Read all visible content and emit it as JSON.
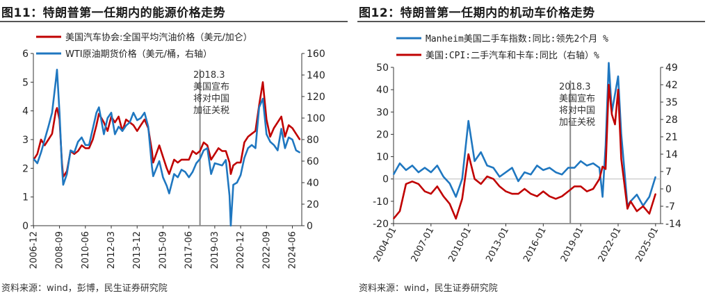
{
  "chart_data": [
    {
      "type": "line",
      "title": "图11：特朗普第一任期内的能源价格走势",
      "source": "资料来源：wind，彭博，民生证券研究院",
      "left_axis": {
        "ylim": [
          0,
          6
        ],
        "ticks": [
          "0",
          "1",
          "2",
          "3",
          "4",
          "5",
          "6"
        ]
      },
      "right_axis": {
        "ylim": [
          0,
          160
        ],
        "ticks": [
          "0",
          "20",
          "40",
          "60",
          "80",
          "100",
          "120",
          "140",
          "160"
        ]
      },
      "x_ticks": [
        "2006-12",
        "2008-09",
        "2010-06",
        "2012-03",
        "2013-12",
        "2015-09",
        "2017-06",
        "2019-03",
        "2020-12",
        "2022-09",
        "2024-06"
      ],
      "annotation": [
        "2018.3",
        "美国宣布",
        "将对中国",
        "加征关税"
      ],
      "event_line_x": "2018-03",
      "series": [
        {
          "name": "美国汽车协会:全国平均汽油价格（美元/加仑）",
          "axis": "left",
          "color": "#c00000",
          "x": [
            "2006-12",
            "2007-03",
            "2007-06",
            "2007-09",
            "2007-12",
            "2008-03",
            "2008-06",
            "2008-07",
            "2008-09",
            "2008-11",
            "2008-12",
            "2009-03",
            "2009-06",
            "2009-09",
            "2009-12",
            "2010-03",
            "2010-06",
            "2010-09",
            "2010-12",
            "2011-03",
            "2011-05",
            "2011-09",
            "2011-12",
            "2012-03",
            "2012-06",
            "2012-09",
            "2012-12",
            "2013-03",
            "2013-06",
            "2013-09",
            "2013-12",
            "2014-03",
            "2014-06",
            "2014-09",
            "2014-12",
            "2015-01",
            "2015-06",
            "2015-09",
            "2015-12",
            "2016-02",
            "2016-06",
            "2016-09",
            "2016-12",
            "2017-03",
            "2017-06",
            "2017-09",
            "2017-12",
            "2018-03",
            "2018-06",
            "2018-09",
            "2018-12",
            "2019-03",
            "2019-06",
            "2019-09",
            "2019-12",
            "2020-03",
            "2020-04",
            "2020-06",
            "2020-09",
            "2020-12",
            "2021-03",
            "2021-06",
            "2021-09",
            "2021-12",
            "2022-03",
            "2022-06",
            "2022-09",
            "2022-12",
            "2023-03",
            "2023-06",
            "2023-09",
            "2023-12",
            "2024-03",
            "2024-06",
            "2024-09",
            "2024-12"
          ],
          "values": [
            2.3,
            2.5,
            3.0,
            2.8,
            3.0,
            3.2,
            4.0,
            4.1,
            3.7,
            2.2,
            1.7,
            1.9,
            2.6,
            2.5,
            2.6,
            2.8,
            2.7,
            2.7,
            3.0,
            3.5,
            3.9,
            3.6,
            3.3,
            3.8,
            3.6,
            3.8,
            3.3,
            3.7,
            3.6,
            3.5,
            3.3,
            3.5,
            3.7,
            3.4,
            2.6,
            2.2,
            2.8,
            2.4,
            2.0,
            1.8,
            2.3,
            2.2,
            2.3,
            2.3,
            2.3,
            2.6,
            2.5,
            2.6,
            2.9,
            2.8,
            2.3,
            2.5,
            2.7,
            2.6,
            2.6,
            2.2,
            1.8,
            2.1,
            2.2,
            2.2,
            2.9,
            3.1,
            3.2,
            3.3,
            4.2,
            5.0,
            3.7,
            3.1,
            3.4,
            3.6,
            3.8,
            3.1,
            3.5,
            3.4,
            3.2,
            3.0
          ]
        },
        {
          "name": "WTI原油期货价格（美元/桶，右轴）",
          "axis": "right",
          "color": "#1f77c0",
          "x": [
            "2006-12",
            "2007-03",
            "2007-06",
            "2007-09",
            "2007-12",
            "2008-03",
            "2008-06",
            "2008-07",
            "2008-09",
            "2008-11",
            "2008-12",
            "2009-03",
            "2009-06",
            "2009-09",
            "2009-12",
            "2010-03",
            "2010-06",
            "2010-09",
            "2010-12",
            "2011-03",
            "2011-05",
            "2011-09",
            "2011-12",
            "2012-03",
            "2012-06",
            "2012-09",
            "2012-12",
            "2013-03",
            "2013-06",
            "2013-09",
            "2013-12",
            "2014-03",
            "2014-06",
            "2014-09",
            "2014-12",
            "2015-01",
            "2015-06",
            "2015-09",
            "2015-12",
            "2016-02",
            "2016-06",
            "2016-09",
            "2016-12",
            "2017-03",
            "2017-06",
            "2017-09",
            "2017-12",
            "2018-03",
            "2018-06",
            "2018-09",
            "2018-12",
            "2019-03",
            "2019-06",
            "2019-09",
            "2019-12",
            "2020-03",
            "2020-04",
            "2020-06",
            "2020-09",
            "2020-12",
            "2021-03",
            "2021-06",
            "2021-09",
            "2021-12",
            "2022-03",
            "2022-06",
            "2022-09",
            "2022-12",
            "2023-03",
            "2023-06",
            "2023-09",
            "2023-12",
            "2024-03",
            "2024-06",
            "2024-09",
            "2024-12"
          ],
          "values": [
            62,
            58,
            68,
            80,
            92,
            105,
            135,
            145,
            105,
            55,
            38,
            48,
            70,
            68,
            78,
            82,
            75,
            75,
            90,
            105,
            110,
            85,
            100,
            105,
            85,
            92,
            88,
            93,
            96,
            105,
            98,
            100,
            105,
            92,
            55,
            46,
            60,
            45,
            37,
            30,
            48,
            45,
            52,
            50,
            45,
            50,
            58,
            62,
            70,
            72,
            48,
            58,
            57,
            56,
            61,
            28,
            0,
            38,
            40,
            47,
            63,
            72,
            75,
            72,
            110,
            118,
            85,
            78,
            75,
            70,
            90,
            72,
            82,
            80,
            70,
            68
          ]
        }
      ]
    },
    {
      "type": "line",
      "title": "图12：特朗普第一任期内的机动车价格走势",
      "source": "资料来源：wind，民生证券研究院",
      "left_axis": {
        "ylim": [
          -20,
          50
        ],
        "ticks": [
          "-20",
          "-10",
          "0",
          "10",
          "20",
          "30",
          "40",
          "50"
        ]
      },
      "right_axis": {
        "ylim": [
          -14,
          49
        ],
        "ticks": [
          "-14",
          "-7",
          "0",
          "7",
          "14",
          "21",
          "28",
          "35",
          "42",
          "49"
        ]
      },
      "x_ticks": [
        "2004-01",
        "2007-01",
        "2010-01",
        "2013-01",
        "2016-01",
        "2019-01",
        "2022-01",
        "2025-01"
      ],
      "annotation": [
        "2018.3",
        "美国宣布",
        "将对中国",
        "加征关税"
      ],
      "event_line_x": "2018-03",
      "series": [
        {
          "name": "Manheim美国二手车指数:同比:领先2个月 %",
          "axis": "left",
          "color": "#1f77c0",
          "x": [
            "2004-01",
            "2004-07",
            "2005-01",
            "2005-07",
            "2006-01",
            "2006-07",
            "2007-01",
            "2007-07",
            "2008-01",
            "2008-07",
            "2009-01",
            "2009-07",
            "2010-01",
            "2010-07",
            "2011-01",
            "2011-07",
            "2012-01",
            "2012-07",
            "2013-01",
            "2013-07",
            "2014-01",
            "2014-07",
            "2015-01",
            "2015-07",
            "2016-01",
            "2016-07",
            "2017-01",
            "2017-07",
            "2018-01",
            "2018-07",
            "2019-01",
            "2019-07",
            "2020-01",
            "2020-07",
            "2020-10",
            "2021-01",
            "2021-04",
            "2021-07",
            "2021-10",
            "2022-01",
            "2022-04",
            "2022-07",
            "2022-10",
            "2023-01",
            "2023-07",
            "2024-01",
            "2024-07",
            "2025-01"
          ],
          "values": [
            2,
            7,
            4,
            6,
            3,
            5,
            3,
            6,
            1,
            -2,
            -8,
            0,
            26,
            8,
            12,
            6,
            5,
            1,
            3,
            5,
            -1,
            3,
            2,
            6,
            4,
            5,
            3,
            2,
            5,
            5,
            8,
            6,
            7,
            5,
            -8,
            15,
            52,
            30,
            38,
            46,
            20,
            4,
            -12,
            -10,
            -7,
            -12,
            -8,
            1
          ]
        },
        {
          "name": "美国:CPI:二手汽车和卡车:同比（右轴）%",
          "axis": "right",
          "color": "#c00000",
          "x": [
            "2004-01",
            "2004-07",
            "2005-01",
            "2005-07",
            "2006-01",
            "2006-07",
            "2007-01",
            "2007-07",
            "2008-01",
            "2008-07",
            "2009-01",
            "2009-07",
            "2010-01",
            "2010-07",
            "2011-01",
            "2011-07",
            "2012-01",
            "2012-07",
            "2013-01",
            "2013-07",
            "2014-01",
            "2014-07",
            "2015-01",
            "2015-07",
            "2016-01",
            "2016-07",
            "2017-01",
            "2017-07",
            "2018-01",
            "2018-07",
            "2019-01",
            "2019-07",
            "2020-01",
            "2020-07",
            "2020-10",
            "2021-01",
            "2021-04",
            "2021-07",
            "2021-10",
            "2022-01",
            "2022-04",
            "2022-07",
            "2022-10",
            "2023-01",
            "2023-07",
            "2024-01",
            "2024-07",
            "2025-01"
          ],
          "values": [
            -12,
            -9,
            2,
            3,
            2,
            -1,
            -2,
            1,
            -3,
            -6,
            -12,
            -4,
            14,
            4,
            2,
            5,
            4,
            1,
            -1,
            -2,
            -2,
            0,
            -2,
            -3,
            -1,
            -3,
            -4,
            -3,
            -1,
            1,
            1,
            -1,
            0,
            4,
            9,
            8,
            42,
            30,
            26,
            40,
            12,
            2,
            -8,
            -5,
            -9,
            -7,
            -10,
            -2
          ]
        }
      ]
    }
  ]
}
